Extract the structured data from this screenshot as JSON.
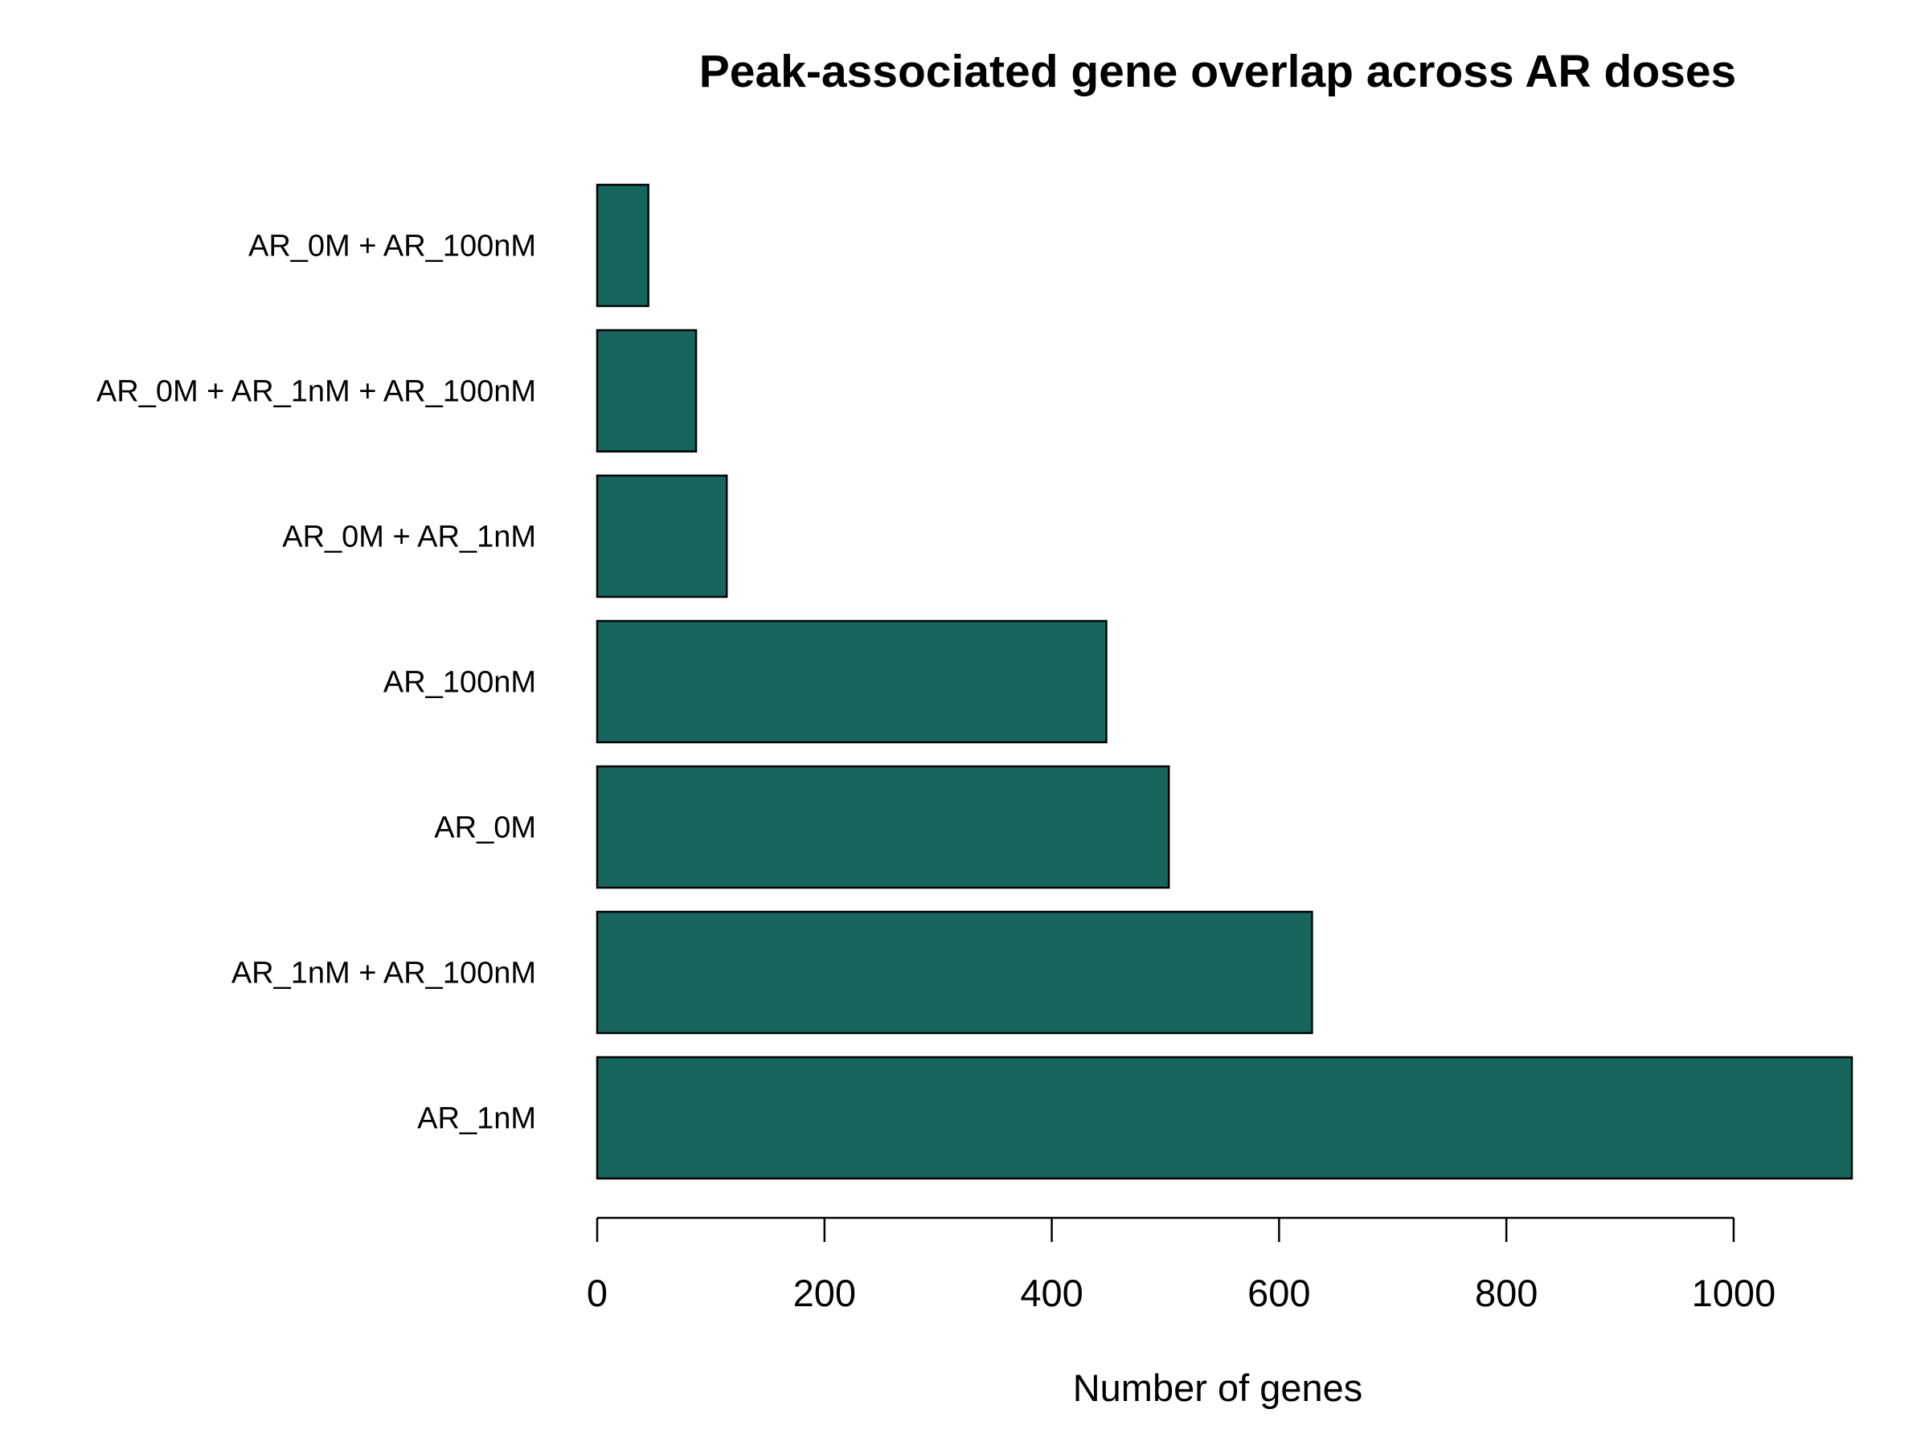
{
  "chart_data": {
    "type": "bar",
    "orientation": "horizontal",
    "title": "Peak-associated gene overlap across AR doses",
    "xlabel": "Number of genes",
    "ylabel": "",
    "categories": [
      "AR_1nM",
      "AR_1nM + AR_100nM",
      "AR_0M",
      "AR_100nM",
      "AR_0M + AR_1nM",
      "AR_0M + AR_1nM + AR_100nM",
      "AR_0M + AR_100nM"
    ],
    "values": [
      1104,
      629,
      503,
      448,
      114,
      87,
      45
    ],
    "xlim": [
      0,
      1104
    ],
    "x_ticks": [
      0,
      200,
      400,
      600,
      800,
      1000
    ],
    "x_tick_labels": [
      "0",
      "200",
      "400",
      "600",
      "800",
      "1000"
    ],
    "grid": false,
    "legend": "none",
    "colors": {
      "bar_fill": "#17665E",
      "bar_stroke": "#000000",
      "text": "#000000",
      "background": "#ffffff"
    }
  }
}
